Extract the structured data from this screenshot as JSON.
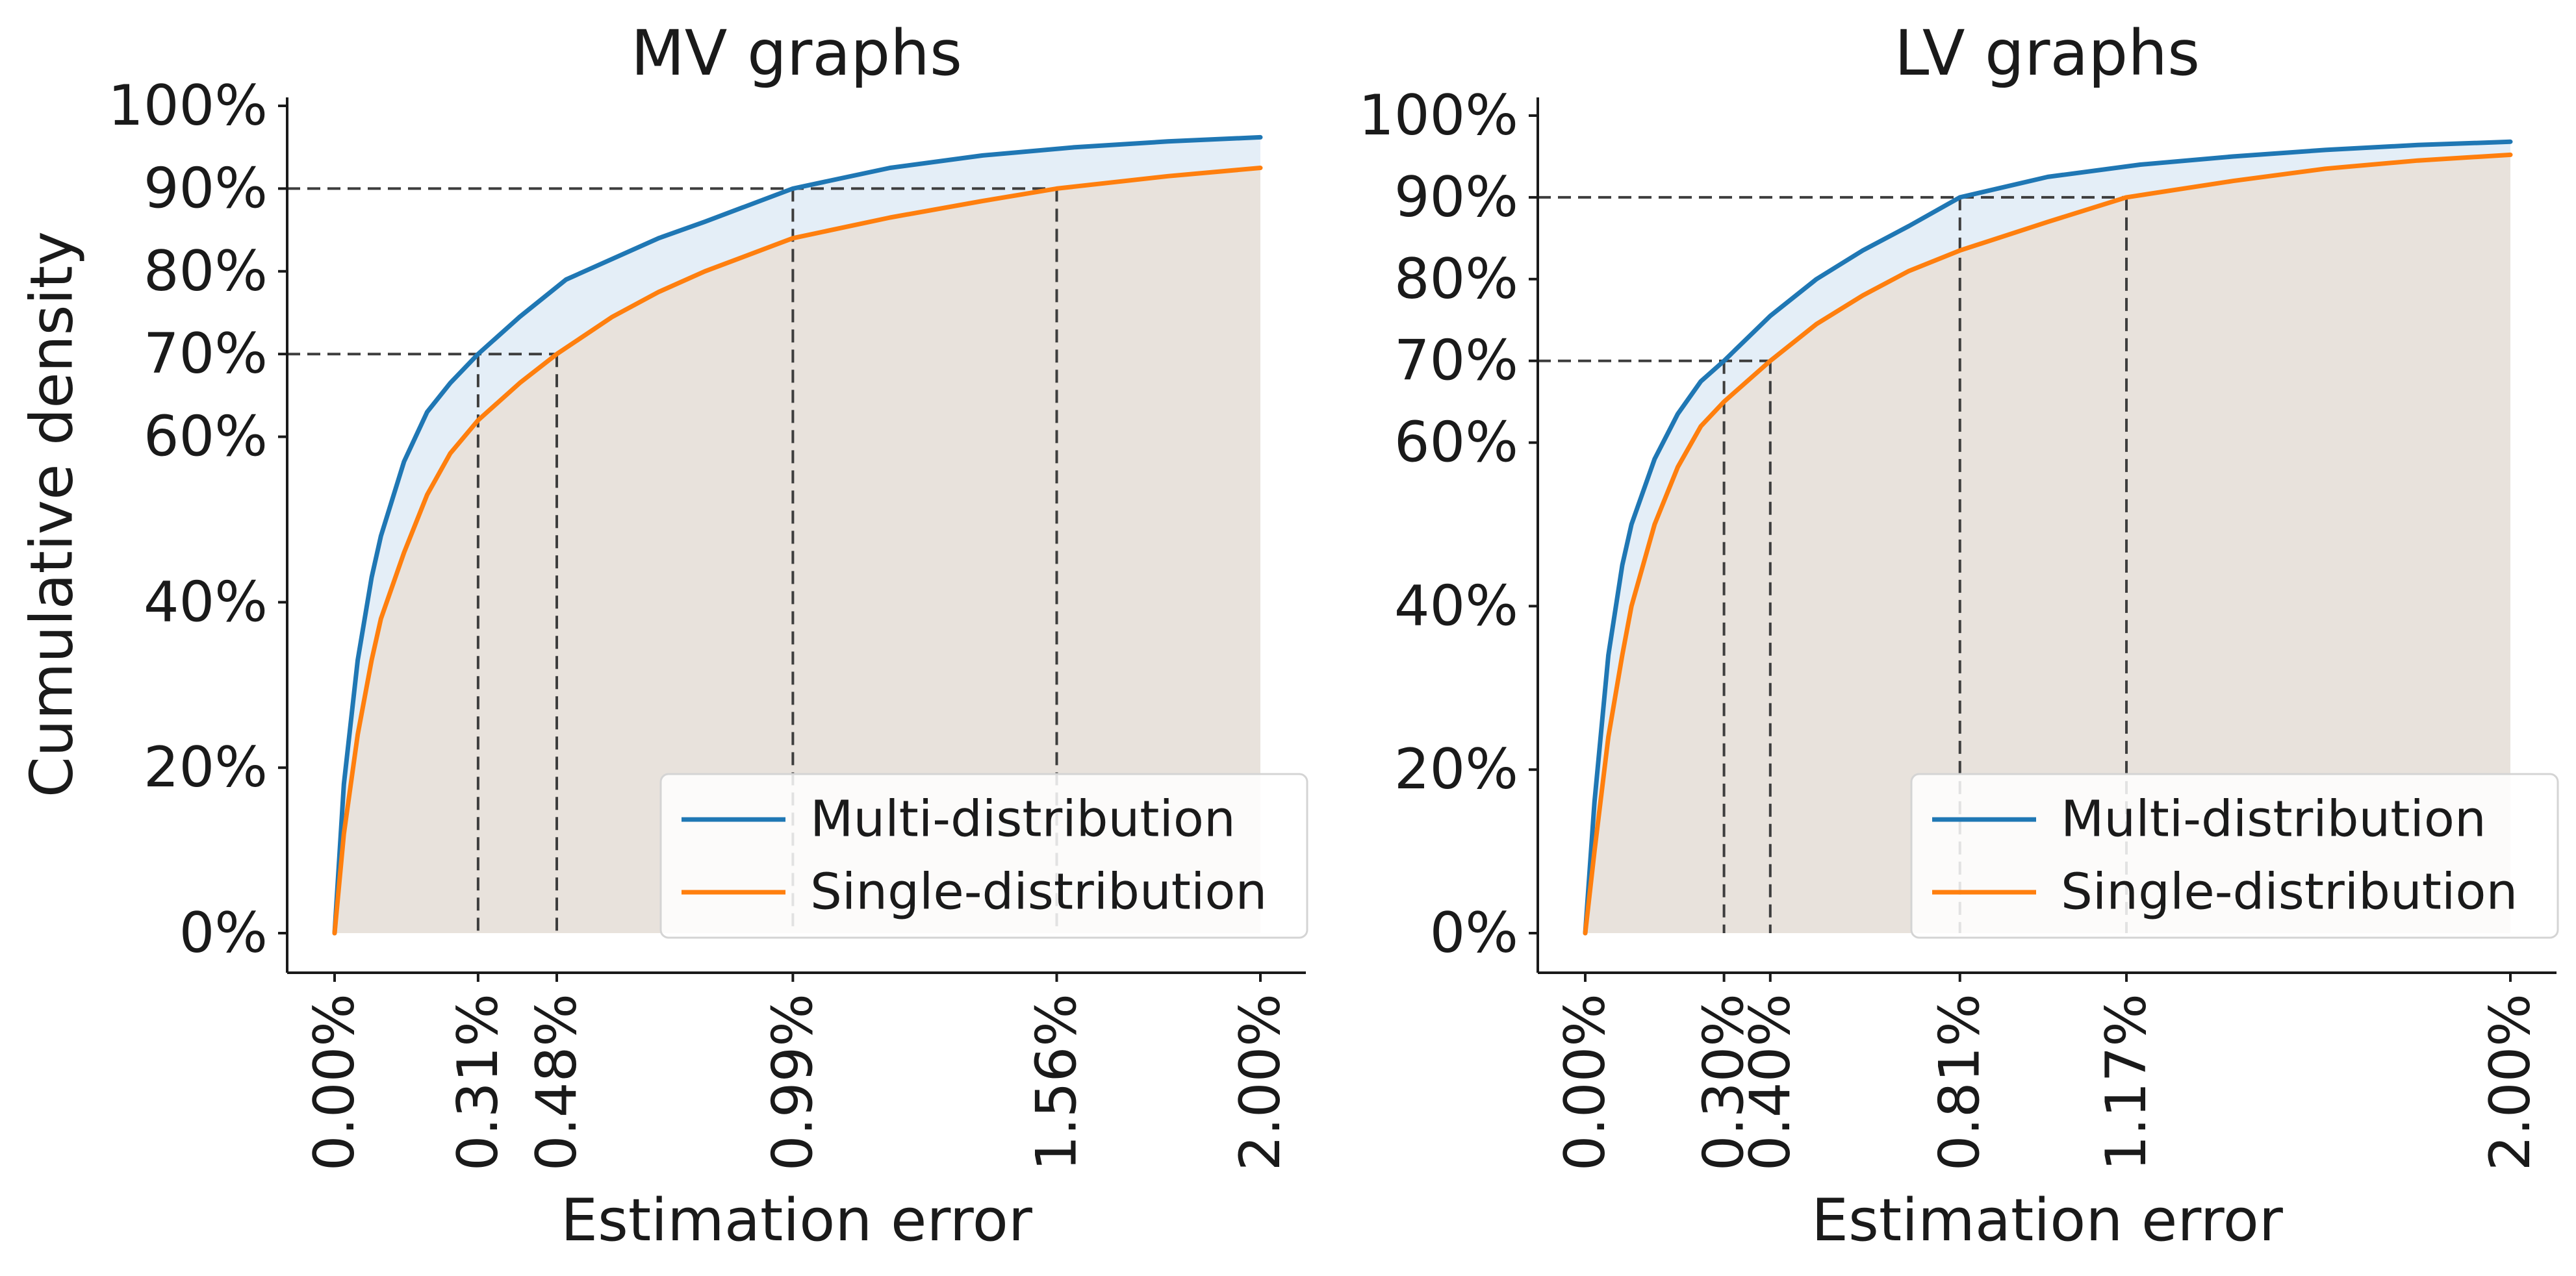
{
  "chart_data": [
    {
      "type": "line",
      "title": "MV graphs",
      "xlabel": "Estimation error",
      "ylabel": "Cumulative density",
      "xlim": [
        0,
        2.0
      ],
      "ylim": [
        0,
        1.0
      ],
      "y_ticks": [
        0,
        0.2,
        0.4,
        0.6,
        0.7,
        0.8,
        0.9,
        1.0
      ],
      "y_tick_labels": [
        "0%",
        "20%",
        "40%",
        "60%",
        "70%",
        "80%",
        "90%",
        "100%"
      ],
      "x_ticks": [
        0,
        0.31,
        0.48,
        0.99,
        1.56,
        2.0
      ],
      "x_tick_labels": [
        "0.00%",
        "0.31%",
        "0.48%",
        "0.99%",
        "1.56%",
        "2.00%"
      ],
      "reference_lines": [
        {
          "level": 0.7,
          "x_values": [
            0.31,
            0.48
          ]
        },
        {
          "level": 0.9,
          "x_values": [
            0.99,
            1.56
          ]
        }
      ],
      "legend_position": "lower-right",
      "series": [
        {
          "name": "Multi-distribution",
          "color": "#1f77b4",
          "x": [
            0,
            0.02,
            0.05,
            0.08,
            0.1,
            0.15,
            0.2,
            0.25,
            0.31,
            0.4,
            0.5,
            0.6,
            0.7,
            0.8,
            0.99,
            1.2,
            1.4,
            1.6,
            1.8,
            2.0
          ],
          "y": [
            0,
            0.18,
            0.33,
            0.43,
            0.48,
            0.57,
            0.63,
            0.665,
            0.7,
            0.745,
            0.79,
            0.815,
            0.84,
            0.86,
            0.9,
            0.925,
            0.94,
            0.95,
            0.957,
            0.962
          ]
        },
        {
          "name": "Single-distribution",
          "color": "#ff7f0e",
          "x": [
            0,
            0.02,
            0.05,
            0.08,
            0.1,
            0.15,
            0.2,
            0.25,
            0.31,
            0.4,
            0.48,
            0.6,
            0.7,
            0.8,
            0.99,
            1.2,
            1.4,
            1.56,
            1.8,
            2.0
          ],
          "y": [
            0,
            0.12,
            0.24,
            0.33,
            0.38,
            0.46,
            0.53,
            0.58,
            0.62,
            0.665,
            0.7,
            0.745,
            0.775,
            0.8,
            0.84,
            0.865,
            0.885,
            0.9,
            0.915,
            0.925
          ]
        }
      ]
    },
    {
      "type": "line",
      "title": "LV graphs",
      "xlabel": "Estimation error",
      "ylabel": "",
      "xlim": [
        0,
        2.0
      ],
      "ylim": [
        0,
        1.0
      ],
      "y_ticks": [
        0,
        0.2,
        0.4,
        0.6,
        0.7,
        0.8,
        0.9,
        1.0
      ],
      "y_tick_labels": [
        "0%",
        "20%",
        "40%",
        "60%",
        "70%",
        "80%",
        "90%",
        "100%"
      ],
      "x_ticks": [
        0,
        0.3,
        0.4,
        0.81,
        1.17,
        2.0
      ],
      "x_tick_labels": [
        "0.00%",
        "0.30%",
        "0.40%",
        "0.81%",
        "1.17%",
        "2.00%"
      ],
      "reference_lines": [
        {
          "level": 0.7,
          "x_values": [
            0.3,
            0.4
          ]
        },
        {
          "level": 0.9,
          "x_values": [
            0.81,
            1.17
          ]
        }
      ],
      "legend_position": "lower-right",
      "series": [
        {
          "name": "Multi-distribution",
          "color": "#1f77b4",
          "x": [
            0,
            0.02,
            0.05,
            0.08,
            0.1,
            0.15,
            0.2,
            0.25,
            0.3,
            0.4,
            0.5,
            0.6,
            0.7,
            0.81,
            1.0,
            1.2,
            1.4,
            1.6,
            1.8,
            2.0
          ],
          "y": [
            0,
            0.16,
            0.34,
            0.45,
            0.5,
            0.58,
            0.635,
            0.675,
            0.7,
            0.755,
            0.8,
            0.835,
            0.865,
            0.9,
            0.925,
            0.94,
            0.95,
            0.958,
            0.964,
            0.968
          ]
        },
        {
          "name": "Single-distribution",
          "color": "#ff7f0e",
          "x": [
            0,
            0.02,
            0.05,
            0.08,
            0.1,
            0.15,
            0.2,
            0.25,
            0.3,
            0.4,
            0.5,
            0.6,
            0.7,
            0.81,
            1.0,
            1.17,
            1.4,
            1.6,
            1.8,
            2.0
          ],
          "y": [
            0,
            0.1,
            0.24,
            0.34,
            0.4,
            0.5,
            0.57,
            0.62,
            0.65,
            0.7,
            0.745,
            0.78,
            0.81,
            0.835,
            0.87,
            0.9,
            0.92,
            0.935,
            0.945,
            0.952
          ]
        }
      ]
    }
  ]
}
